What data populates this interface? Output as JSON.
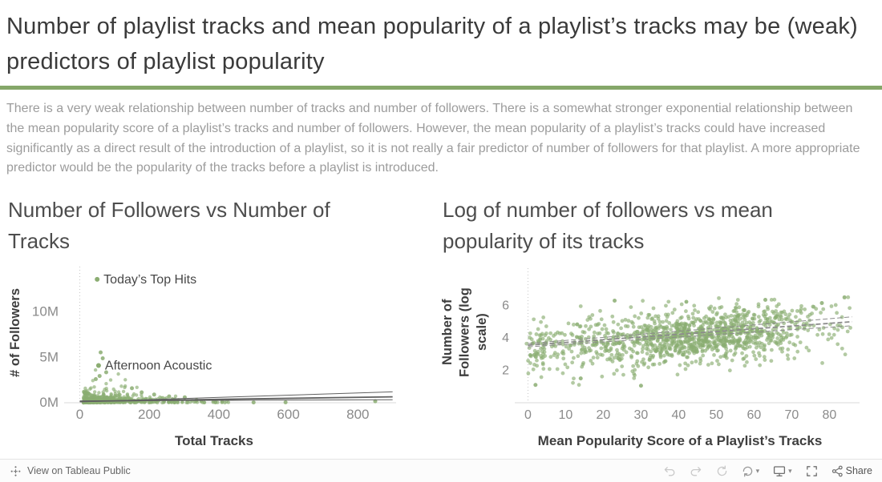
{
  "theme": {
    "accent": "#85A769",
    "point_green": "#8BAD72",
    "title_color": "#3a3a3a"
  },
  "header": {
    "title": "Number of playlist tracks and mean popularity of a playlist’s tracks may be (weak) predictors of playlist popularity"
  },
  "description": "There is a very weak relationship between number of tracks and number of followers. There is a somewhat stronger exponential relationship between the mean popularity score of a playlist’s tracks and number of followers. However, the mean popularity of a playlist’s tracks could have increased significantly as a direct result of the introduction of a playlist, so it is not really a fair predictor of number of followers for that playlist. A more appropriate predictor would be the popularity of the tracks before a playlist is introduced.",
  "chart_data": [
    {
      "type": "scatter",
      "title": "Number of Followers vs Number of Tracks",
      "xlabel": "Total Tracks",
      "ylabel": "# of Followers",
      "xlim": [
        -45,
        910
      ],
      "ylim": [
        0,
        15000000
      ],
      "x_ticks": [
        0,
        200,
        400,
        600,
        800
      ],
      "y_ticks": [
        {
          "value": 0,
          "label": "0M"
        },
        {
          "value": 5000000,
          "label": "5M"
        },
        {
          "value": 10000000,
          "label": "10M"
        }
      ],
      "point_color": "#8BAD72",
      "grid": "zero-line-dotted",
      "trend": {
        "style": "solid",
        "color": "#606060",
        "lines": [
          [
            [
              0,
              150000
            ],
            [
              900,
              650000
            ]
          ],
          [
            [
              0,
              100000
            ],
            [
              900,
              1200000
            ]
          ],
          [
            [
              0,
              200000
            ],
            [
              900,
              330000
            ]
          ]
        ]
      },
      "annotations": [
        {
          "label": "Today’s Top Hits",
          "x": 50,
          "y": 13600000
        },
        {
          "label": "Afternoon Acoustic",
          "x": 54,
          "y": 4100000
        }
      ],
      "outlier_points": [
        [
          390,
          60000
        ],
        [
          500,
          35000
        ],
        [
          592,
          45000
        ],
        [
          850,
          160000
        ],
        [
          60,
          5550000
        ],
        [
          66,
          4900000
        ],
        [
          57,
          2950000
        ],
        [
          76,
          3350000
        ],
        [
          46,
          2600000
        ],
        [
          150,
          1600000
        ],
        [
          178,
          1150000
        ],
        [
          214,
          900000
        ],
        [
          257,
          700000
        ],
        [
          302,
          600000
        ],
        [
          336,
          280000
        ],
        [
          410,
          120000
        ]
      ],
      "cluster": {
        "n": 620,
        "x_min": 10,
        "x_max": 330,
        "x_exp_mean": 80,
        "y_exp_mean": 210000,
        "boost_below_x": 160,
        "boost_prob": 0.3,
        "boost_mean": 480000,
        "note": "dense cluster: most playlists have fewer than 300 tracks and fewer than 2M followers"
      }
    },
    {
      "type": "scatter",
      "title": "Log of number of followers vs mean popularity of its tracks",
      "xlabel": "Mean Popularity Score of a Playlist’s Tracks",
      "ylabel": "Number of Followers (log scale)",
      "xlim": [
        -3.5,
        88
      ],
      "ylim": [
        0,
        8.3
      ],
      "x_ticks": [
        0,
        10,
        20,
        30,
        40,
        50,
        60,
        70,
        80
      ],
      "y_ticks": [
        {
          "value": 2,
          "label": "2"
        },
        {
          "value": 4,
          "label": "4"
        },
        {
          "value": 6,
          "label": "6"
        }
      ],
      "point_color": "#8BAD72",
      "grid": "zero-line-dotted",
      "trend": {
        "style": "dashed",
        "color": "#8c8c8c",
        "lines": [
          [
            [
              0,
              3.55
            ],
            [
              86,
              5.0
            ]
          ],
          [
            [
              0,
              3.45
            ],
            [
              86,
              4.75
            ]
          ],
          [
            [
              0,
              3.65
            ],
            [
              86,
              5.3
            ]
          ]
        ]
      },
      "annotations": [],
      "outlier_points": [
        [
          2,
          1.1
        ],
        [
          30,
          1.05
        ],
        [
          14,
          1.5
        ],
        [
          63,
          6.35
        ],
        [
          84,
          6.5
        ],
        [
          78,
          6.15
        ],
        [
          23,
          6.3
        ]
      ],
      "cluster": {
        "n": 1250,
        "x_mean": 47,
        "x_sd": 16,
        "intercept": 3.3,
        "slope": 0.019,
        "y_sd": 0.8,
        "y_min": 1.0,
        "y_max": 6.6,
        "note": "log10 of follower count rises weakly with mean popularity score of tracks"
      }
    }
  ],
  "footer": {
    "view_label": "View on Tableau Public",
    "share_label": "Share",
    "icons": [
      "undo",
      "redo",
      "replay",
      "refresh",
      "device-preview",
      "fullscreen",
      "share"
    ]
  }
}
